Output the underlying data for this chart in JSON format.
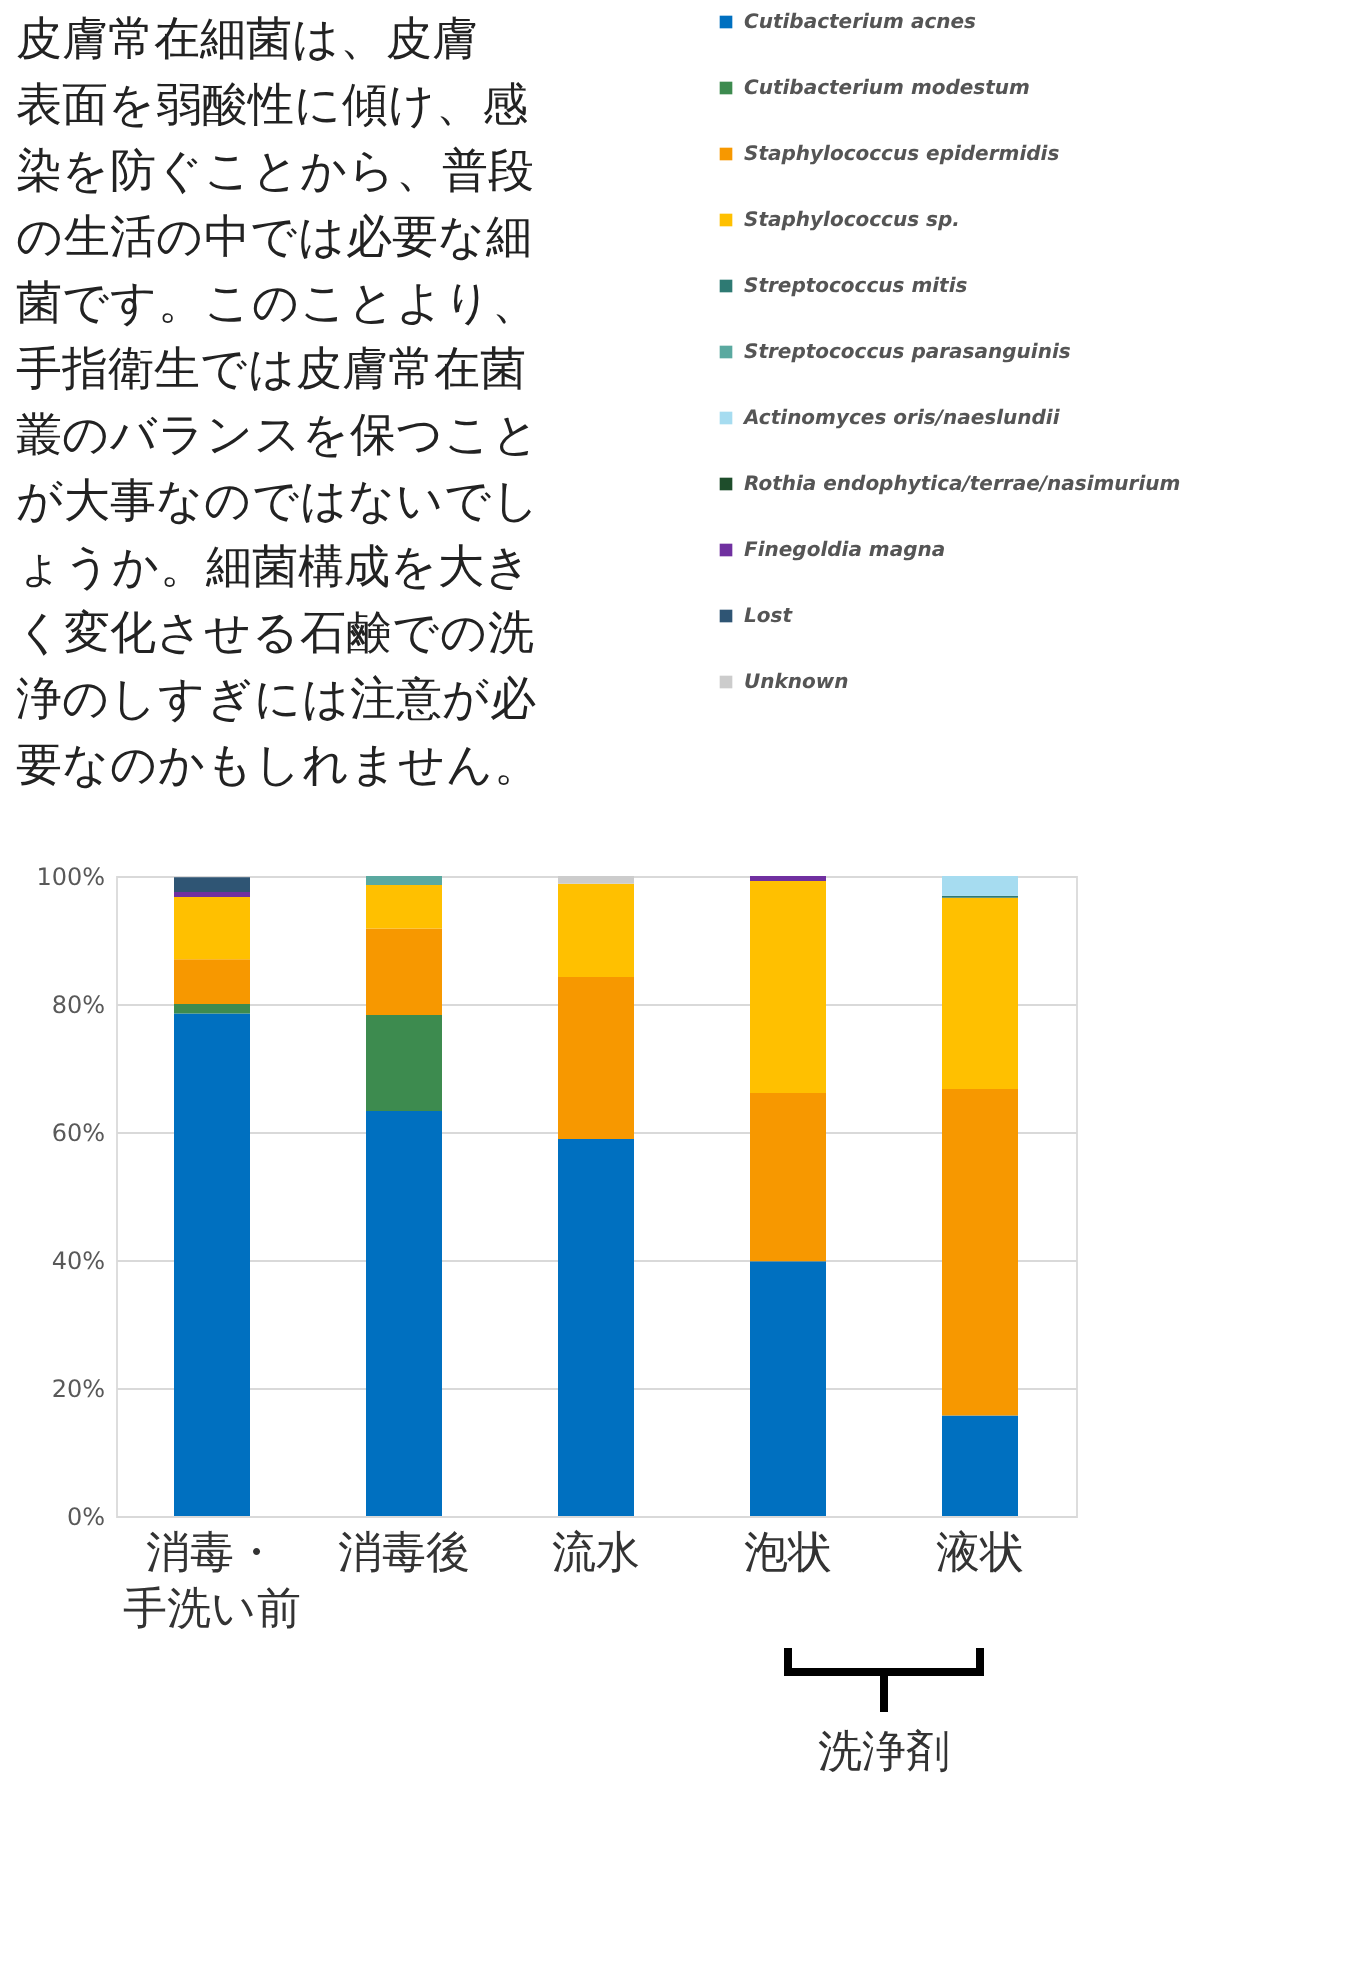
{
  "chart_data": {
    "type": "bar",
    "stacked": true,
    "categories": [
      "消毒・手洗い前",
      "消毒後",
      "流水",
      "泡状",
      "液状"
    ],
    "series": [
      {
        "name": "Cutibacterium acnes",
        "color": "#0070c0",
        "values": [
          78.5,
          63.3,
          58.9,
          39.8,
          15.7
        ]
      },
      {
        "name": "Cutibacterium modestum",
        "color": "#3d8b4f",
        "values": [
          1.5,
          15,
          null,
          null,
          null
        ]
      },
      {
        "name": "Staphylococcus epidermidis",
        "color": "#f79800",
        "values": [
          7,
          13.5,
          25.3,
          26.3,
          51
        ]
      },
      {
        "name": "Staphylococcus sp.",
        "color": "#ffc000",
        "values": [
          9.7,
          6.8,
          14.6,
          33.1,
          29.9
        ]
      },
      {
        "name": "Streptococcus mitis",
        "color": "#2e7a73",
        "values": [
          null,
          null,
          null,
          null,
          0.3
        ]
      },
      {
        "name": "Streptococcus parasanguinis",
        "color": "#5aa9a0",
        "values": [
          null,
          1.4,
          null,
          null,
          null
        ]
      },
      {
        "name": "Actinomyces oris/naeslundii",
        "color": "#a6dcf0",
        "values": [
          null,
          null,
          null,
          null,
          3.1
        ]
      },
      {
        "name": "Rothia endophytica/terrae/nasimurium",
        "color": "#1e4d2b",
        "values": [
          null,
          null,
          null,
          null,
          null
        ]
      },
      {
        "name": "Finegoldia magna",
        "color": "#7030a0",
        "values": [
          0.8,
          null,
          null,
          0.8,
          null
        ]
      },
      {
        "name": "Lost",
        "color": "#2f5574",
        "values": [
          2.3,
          null,
          null,
          null,
          null
        ]
      },
      {
        "name": "Unknown",
        "color": "#cccccc",
        "values": [
          null,
          null,
          1.2,
          null,
          null
        ]
      }
    ],
    "ylim": [
      0,
      100
    ],
    "yticks": [
      {
        "value": 0,
        "label": "0%"
      },
      {
        "value": 20,
        "label": "20%"
      },
      {
        "value": 40,
        "label": "40%"
      },
      {
        "value": 60,
        "label": "60%"
      },
      {
        "value": 80,
        "label": "80%"
      },
      {
        "value": 100,
        "label": "100%"
      }
    ],
    "grid": "y",
    "legend": "top right",
    "annotations": [
      "　皮膚常在細菌は、皮膚表面を弱酸性に傾け、感染を防ぐことから、普段の生活の中では必要な細菌です。このことより、手指衛生では皮膚常在菌叢のバランスを保つことが大事なのではないでしょうか。細菌構成を大きく変化させる石鹸での洗浄のしすぎには注意が必要なのかもしれません。",
      "洗浄剤"
    ]
  }
}
